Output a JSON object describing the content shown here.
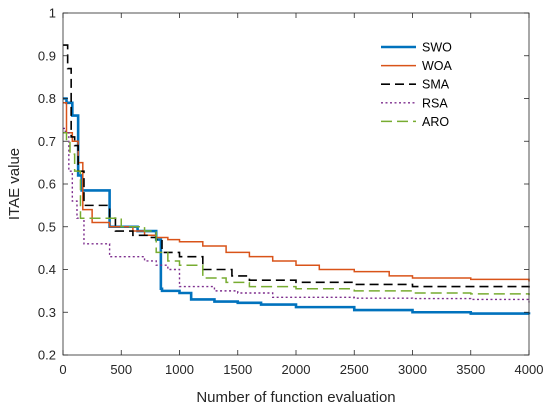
{
  "chart_data": {
    "type": "line",
    "title": "",
    "xlabel": "Number of function evaluation",
    "ylabel": "ITAE value",
    "xlim": [
      0,
      4000
    ],
    "ylim": [
      0.2,
      1.0
    ],
    "xticks": [
      0,
      500,
      1000,
      1500,
      2000,
      2500,
      3000,
      3500,
      4000
    ],
    "yticks": [
      0.2,
      0.3,
      0.4,
      0.5,
      0.6,
      0.7,
      0.8,
      0.9,
      1.0
    ],
    "xtick_labels": [
      "0",
      "500",
      "1000",
      "1500",
      "2000",
      "2500",
      "3000",
      "3500",
      "4000"
    ],
    "ytick_labels": [
      "0.2",
      "0.3",
      "0.4",
      "0.5",
      "0.6",
      "0.7",
      "0.8",
      "0.9",
      "1"
    ],
    "grid": false,
    "legend_position": "top-right",
    "series": [
      {
        "name": "SWO",
        "color": "#0072bd",
        "dash": "solid",
        "x": [
          0,
          30,
          80,
          130,
          160,
          390,
          400,
          640,
          800,
          840,
          850,
          1000,
          1100,
          1300,
          1500,
          1700,
          2000,
          2500,
          3000,
          3500,
          4000
        ],
        "y": [
          0.8,
          0.79,
          0.76,
          0.62,
          0.585,
          0.585,
          0.5,
          0.49,
          0.47,
          0.355,
          0.35,
          0.345,
          0.33,
          0.325,
          0.322,
          0.318,
          0.312,
          0.305,
          0.3,
          0.297,
          0.295
        ]
      },
      {
        "name": "WOA",
        "color": "#d95319",
        "dash": "solid",
        "x": [
          0,
          30,
          80,
          130,
          170,
          250,
          400,
          600,
          700,
          800,
          900,
          1000,
          1200,
          1400,
          1600,
          1800,
          2000,
          2200,
          2500,
          2800,
          3000,
          3500,
          4000
        ],
        "y": [
          0.79,
          0.72,
          0.7,
          0.65,
          0.54,
          0.51,
          0.5,
          0.49,
          0.48,
          0.475,
          0.47,
          0.465,
          0.455,
          0.44,
          0.43,
          0.42,
          0.41,
          0.4,
          0.395,
          0.385,
          0.38,
          0.377,
          0.372
        ]
      },
      {
        "name": "SMA",
        "color": "#000000",
        "dash": "dash",
        "x": [
          0,
          40,
          70,
          100,
          130,
          180,
          250,
          400,
          450,
          600,
          750,
          800,
          850,
          1000,
          1200,
          1450,
          1600,
          2000,
          2500,
          3000,
          3500,
          4000
        ],
        "y": [
          0.925,
          0.87,
          0.71,
          0.69,
          0.63,
          0.55,
          0.55,
          0.52,
          0.49,
          0.48,
          0.475,
          0.47,
          0.44,
          0.43,
          0.4,
          0.385,
          0.375,
          0.37,
          0.365,
          0.36,
          0.36,
          0.358
        ]
      },
      {
        "name": "RSA",
        "color": "#7e2f8e",
        "dash": "dot",
        "x": [
          0,
          20,
          50,
          80,
          120,
          180,
          400,
          500,
          700,
          800,
          900,
          1000,
          1300,
          1500,
          1800,
          2000,
          2500,
          3000,
          3500,
          4000
        ],
        "y": [
          0.73,
          0.72,
          0.63,
          0.56,
          0.52,
          0.46,
          0.43,
          0.43,
          0.42,
          0.41,
          0.4,
          0.36,
          0.35,
          0.345,
          0.335,
          0.335,
          0.333,
          0.332,
          0.33,
          0.323
        ]
      },
      {
        "name": "ARO",
        "color": "#77ac30",
        "dash": "longdash",
        "x": [
          0,
          30,
          60,
          100,
          150,
          250,
          400,
          500,
          600,
          700,
          800,
          900,
          1000,
          1200,
          1400,
          1600,
          2000,
          2500,
          3000,
          3500,
          4000
        ],
        "y": [
          0.72,
          0.7,
          0.67,
          0.63,
          0.52,
          0.52,
          0.52,
          0.5,
          0.5,
          0.49,
          0.44,
          0.42,
          0.41,
          0.38,
          0.37,
          0.36,
          0.355,
          0.35,
          0.345,
          0.343,
          0.34
        ]
      }
    ]
  }
}
